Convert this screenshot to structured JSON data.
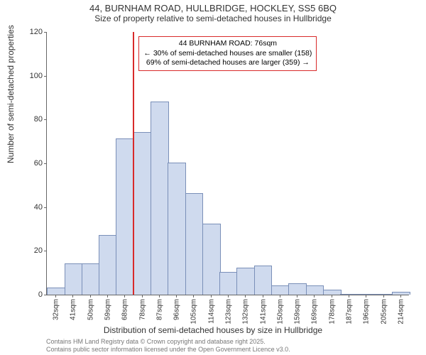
{
  "title": "44, BURNHAM ROAD, HULLBRIDGE, HOCKLEY, SS5 6BQ",
  "subtitle": "Size of property relative to semi-detached houses in Hullbridge",
  "y_axis_label": "Number of semi-detached properties",
  "x_axis_label": "Distribution of semi-detached houses by size in Hullbridge",
  "chart": {
    "type": "histogram",
    "ylim": [
      0,
      120
    ],
    "ytick_step": 20,
    "yticks": [
      0,
      20,
      40,
      60,
      80,
      100,
      120
    ],
    "x_categories": [
      "32sqm",
      "41sqm",
      "50sqm",
      "59sqm",
      "68sqm",
      "78sqm",
      "87sqm",
      "96sqm",
      "105sqm",
      "114sqm",
      "123sqm",
      "132sqm",
      "141sqm",
      "150sqm",
      "159sqm",
      "169sqm",
      "178sqm",
      "187sqm",
      "196sqm",
      "205sqm",
      "214sqm"
    ],
    "values": [
      3,
      14,
      14,
      27,
      71,
      74,
      88,
      60,
      46,
      32,
      10,
      12,
      13,
      4,
      5,
      4,
      2,
      0,
      0,
      0,
      1
    ],
    "bar_fill": "#cfdaee",
    "bar_stroke": "#7a8fb8",
    "background_color": "#ffffff",
    "axis_color": "#666666"
  },
  "reference_line": {
    "x_category": "78sqm",
    "color": "#d82a2a",
    "width": 2
  },
  "annotation": {
    "lines": [
      "44 BURNHAM ROAD: 76sqm",
      "← 30% of semi-detached houses are smaller (158)",
      "69% of semi-detached houses are larger (359) →"
    ],
    "border_color": "#d82a2a"
  },
  "footer": {
    "line1": "Contains HM Land Registry data © Crown copyright and database right 2025.",
    "line2": "Contains public sector information licensed under the Open Government Licence v3.0."
  }
}
